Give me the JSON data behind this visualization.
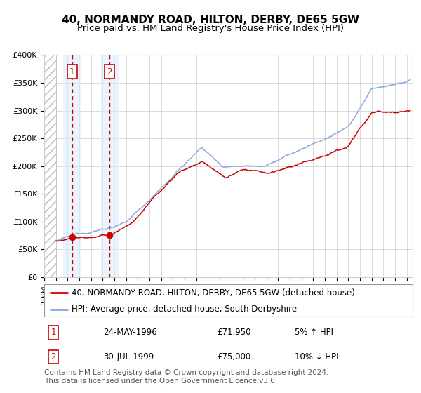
{
  "title": "40, NORMANDY ROAD, HILTON, DERBY, DE65 5GW",
  "subtitle": "Price paid vs. HM Land Registry's House Price Index (HPI)",
  "legend_line1": "40, NORMANDY ROAD, HILTON, DERBY, DE65 5GW (detached house)",
  "legend_line2": "HPI: Average price, detached house, South Derbyshire",
  "footer": "Contains HM Land Registry data © Crown copyright and database right 2024.\nThis data is licensed under the Open Government Licence v3.0.",
  "sale1_label": "1",
  "sale1_date": "24-MAY-1996",
  "sale1_price": "£71,950",
  "sale1_hpi": "5% ↑ HPI",
  "sale1_year": 1996.39,
  "sale1_value": 71950,
  "sale2_label": "2",
  "sale2_date": "30-JUL-1999",
  "sale2_price": "£75,000",
  "sale2_hpi": "10% ↓ HPI",
  "sale2_year": 1999.58,
  "sale2_value": 75000,
  "xmin": 1994.0,
  "xmax": 2025.5,
  "ymin": 0,
  "ymax": 400000,
  "hatch_end": 1995.0,
  "red_color": "#cc0000",
  "blue_color": "#88aadd",
  "background_color": "#ffffff",
  "grid_color": "#cccccc",
  "shade_color": "#ddeeff",
  "hatch_color": "#bbbbbb",
  "title_fontsize": 11,
  "subtitle_fontsize": 9.5,
  "axis_fontsize": 8,
  "footer_fontsize": 7.5,
  "legend_fontsize": 8.5,
  "table_fontsize": 8.5
}
